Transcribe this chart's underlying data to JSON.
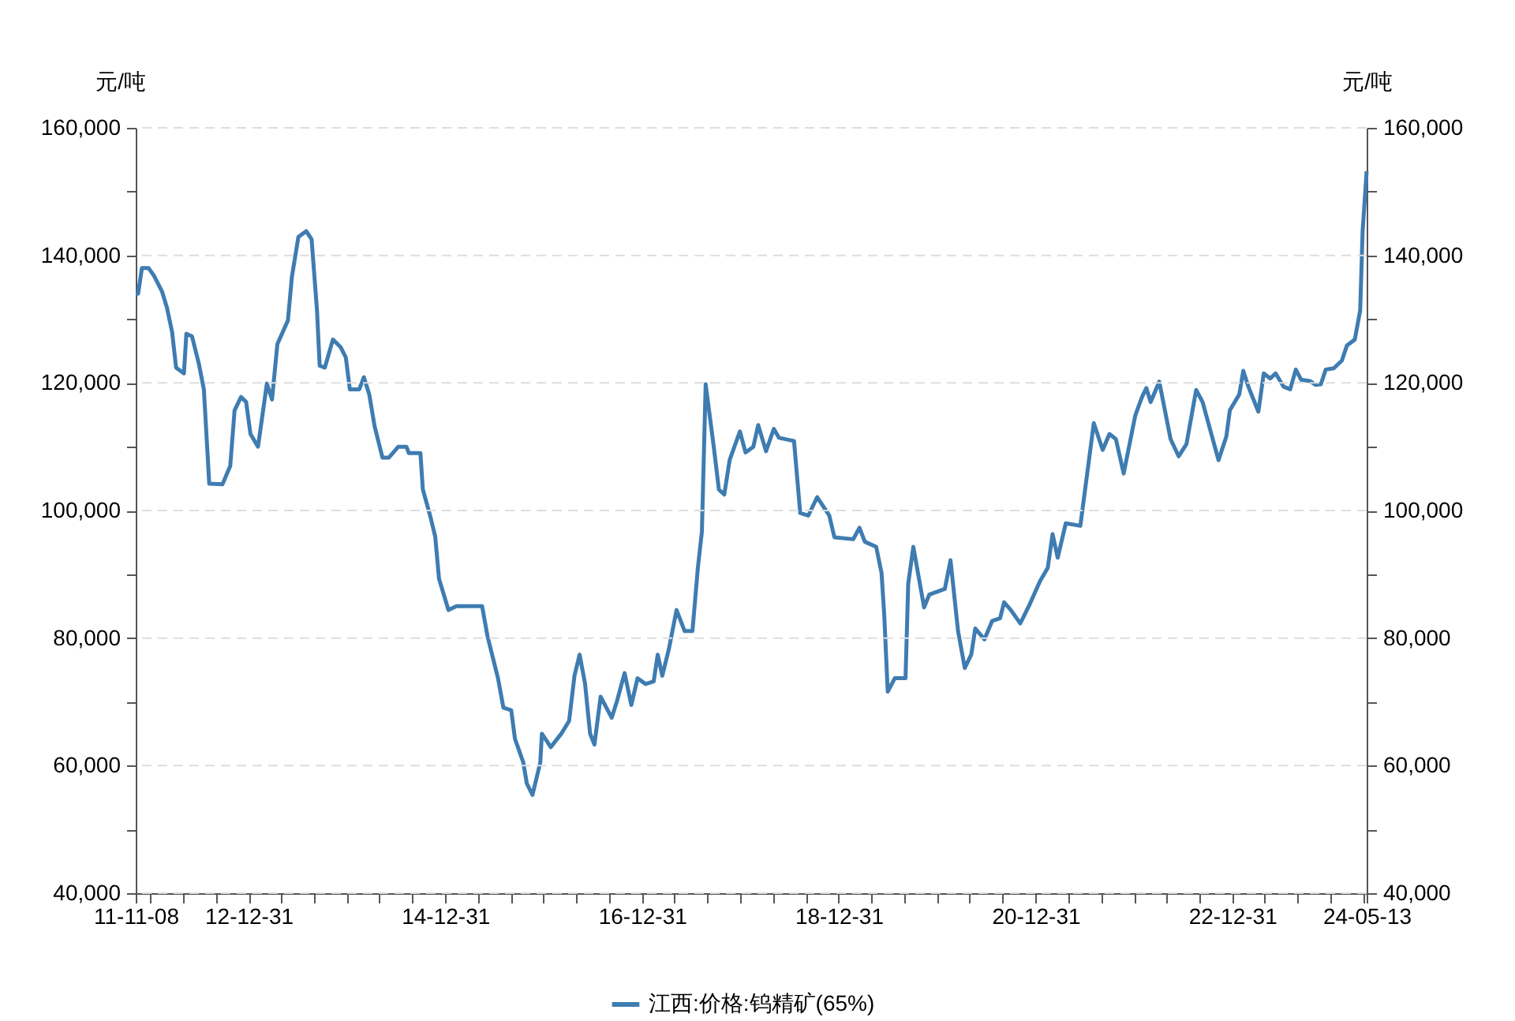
{
  "chart_data": {
    "type": "line",
    "ylabel": "元/吨",
    "y2label": "元/吨",
    "x": [
      "2011-11-08",
      "2011-11-17",
      "2011-12-01",
      "2011-12-26",
      "2012-01-15",
      "2012-02-14",
      "2012-03-03",
      "2012-03-22",
      "2012-04-06",
      "2012-05-05",
      "2012-05-14",
      "2012-06-04",
      "2012-06-29",
      "2012-07-18",
      "2012-08-07",
      "2012-09-25",
      "2012-10-24",
      "2012-11-09",
      "2012-12-03",
      "2012-12-22",
      "2013-01-07",
      "2013-02-04",
      "2013-03-09",
      "2013-03-28",
      "2013-04-17",
      "2013-05-26",
      "2013-06-10",
      "2013-07-04",
      "2013-08-02",
      "2013-08-22",
      "2013-09-11",
      "2013-09-21",
      "2013-10-10",
      "2013-11-09",
      "2013-12-08",
      "2013-12-27",
      "2014-01-11",
      "2014-02-15",
      "2014-03-04",
      "2014-03-24",
      "2014-04-13",
      "2014-05-12",
      "2014-06-05",
      "2014-07-10",
      "2014-08-09",
      "2014-08-18",
      "2014-09-30",
      "2014-10-09",
      "2014-11-05",
      "2014-11-24",
      "2014-12-08",
      "2015-01-12",
      "2015-02-11",
      "2015-05-17",
      "2015-06-06",
      "2015-07-15",
      "2015-08-04",
      "2015-09-02",
      "2015-09-16",
      "2015-10-17",
      "2015-10-30",
      "2015-11-20",
      "2015-12-19",
      "2015-12-25",
      "2016-01-27",
      "2016-03-06",
      "2016-04-04",
      "2016-04-24",
      "2016-05-13",
      "2016-06-02",
      "2016-06-21",
      "2016-07-07",
      "2016-07-30",
      "2016-09-09",
      "2016-09-28",
      "2016-10-27",
      "2016-11-21",
      "2016-12-14",
      "2017-01-13",
      "2017-02-12",
      "2017-02-27",
      "2017-03-16",
      "2017-04-09",
      "2017-05-08",
      "2017-06-07",
      "2017-07-06",
      "2017-07-26",
      "2017-08-10",
      "2017-08-24",
      "2017-09-23",
      "2017-10-12",
      "2017-11-01",
      "2017-11-21",
      "2017-12-29",
      "2018-01-19",
      "2018-02-17",
      "2018-03-07",
      "2018-04-05",
      "2018-05-04",
      "2018-05-23",
      "2018-07-18",
      "2018-08-10",
      "2018-09-09",
      "2018-10-12",
      "2018-11-26",
      "2018-12-15",
      "2019-02-23",
      "2019-03-18",
      "2019-04-07",
      "2019-05-19",
      "2019-06-08",
      "2019-06-18",
      "2019-07-01",
      "2019-07-27",
      "2019-09-05",
      "2019-09-15",
      "2019-10-04",
      "2019-11-13",
      "2019-12-02",
      "2020-01-29",
      "2020-02-19",
      "2020-03-18",
      "2020-04-12",
      "2020-05-06",
      "2020-05-21",
      "2020-06-24",
      "2020-07-23",
      "2020-08-21",
      "2020-09-05",
      "2020-09-30",
      "2020-11-04",
      "2020-12-08",
      "2021-01-16",
      "2021-02-14",
      "2021-03-04",
      "2021-03-23",
      "2021-04-22",
      "2021-06-15",
      "2021-07-08",
      "2021-08-04",
      "2021-09-06",
      "2021-10-01",
      "2021-10-25",
      "2021-11-23",
      "2022-01-05",
      "2022-01-30",
      "2022-02-15",
      "2022-03-03",
      "2022-04-04",
      "2022-05-16",
      "2022-06-15",
      "2022-07-14",
      "2022-08-19",
      "2022-09-12",
      "2022-11-10",
      "2022-12-09",
      "2022-12-22",
      "2023-01-26",
      "2023-02-10",
      "2023-03-01",
      "2023-04-07",
      "2023-04-27",
      "2023-05-21",
      "2023-06-10",
      "2023-07-10",
      "2023-08-03",
      "2023-08-24",
      "2023-09-13",
      "2023-10-16",
      "2023-11-05",
      "2023-11-25",
      "2023-12-13",
      "2024-01-12",
      "2024-02-11",
      "2024-03-01",
      "2024-03-30",
      "2024-04-19",
      "2024-04-28",
      "2024-05-13"
    ],
    "series": [
      {
        "name": "江西:价格:钨精矿(65%)",
        "color": "#3e7cb1",
        "values": [
          134000,
          134000,
          138000,
          138000,
          136800,
          134300,
          131800,
          128000,
          122400,
          121500,
          127700,
          127300,
          123100,
          119000,
          104200,
          104100,
          107000,
          115700,
          117800,
          117000,
          112000,
          110000,
          119900,
          117400,
          126100,
          129800,
          136700,
          142900,
          143800,
          142500,
          131400,
          122700,
          122400,
          126800,
          125600,
          124000,
          119000,
          119000,
          120900,
          118200,
          113200,
          108300,
          108300,
          110000,
          110000,
          109000,
          109000,
          103300,
          99200,
          95900,
          89300,
          84400,
          85000,
          85000,
          80300,
          73700,
          69100,
          68700,
          64200,
          60500,
          57200,
          55400,
          60500,
          65000,
          62900,
          65000,
          67000,
          74100,
          77400,
          72900,
          65000,
          63300,
          70800,
          67500,
          70000,
          74500,
          69500,
          73700,
          72800,
          73200,
          77400,
          74100,
          78200,
          84400,
          81100,
          81100,
          91000,
          96700,
          119800,
          110000,
          103300,
          102500,
          107900,
          112400,
          109100,
          110000,
          113400,
          109300,
          112800,
          111400,
          110900,
          99600,
          99200,
          102100,
          99200,
          95800,
          95500,
          97300,
          95100,
          94300,
          90200,
          83600,
          71600,
          73700,
          73700,
          88500,
          94300,
          84800,
          86800,
          87700,
          92200,
          81100,
          75300,
          77400,
          81500,
          79800,
          82700,
          83100,
          85600,
          84400,
          82300,
          85200,
          88900,
          91000,
          96300,
          92600,
          98000,
          97600,
          105000,
          113700,
          109500,
          112000,
          111200,
          105800,
          114900,
          117800,
          119200,
          117000,
          120200,
          111200,
          108500,
          110400,
          118900,
          117000,
          107900,
          111600,
          115700,
          118200,
          121900,
          119400,
          115500,
          121500,
          120700,
          121500,
          119400,
          119000,
          122100,
          120500,
          120300,
          119700,
          119800,
          122100,
          122300,
          123500,
          125900,
          126800,
          131400,
          143800,
          153200
        ]
      }
    ],
    "xlim": [
      "2011-11-08",
      "2024-05-13"
    ],
    "xticks": [
      {
        "value": "2011-11-08",
        "label": "11-11-08"
      },
      {
        "value": "2011-12-31",
        "label": null
      },
      {
        "value": "2012-04-30",
        "label": null
      },
      {
        "value": "2012-08-31",
        "label": null
      },
      {
        "value": "2012-12-31",
        "label": "12-12-31"
      },
      {
        "value": "2013-04-30",
        "label": null
      },
      {
        "value": "2013-08-31",
        "label": null
      },
      {
        "value": "2013-12-31",
        "label": null
      },
      {
        "value": "2014-04-30",
        "label": null
      },
      {
        "value": "2014-08-31",
        "label": null
      },
      {
        "value": "2014-12-31",
        "label": "14-12-31"
      },
      {
        "value": "2015-04-30",
        "label": null
      },
      {
        "value": "2015-08-31",
        "label": null
      },
      {
        "value": "2015-12-31",
        "label": null
      },
      {
        "value": "2016-04-30",
        "label": null
      },
      {
        "value": "2016-08-31",
        "label": null
      },
      {
        "value": "2016-12-31",
        "label": "16-12-31"
      },
      {
        "value": "2017-04-30",
        "label": null
      },
      {
        "value": "2017-08-31",
        "label": null
      },
      {
        "value": "2017-12-31",
        "label": null
      },
      {
        "value": "2018-04-30",
        "label": null
      },
      {
        "value": "2018-08-31",
        "label": null
      },
      {
        "value": "2018-12-31",
        "label": "18-12-31"
      },
      {
        "value": "2019-04-30",
        "label": null
      },
      {
        "value": "2019-08-31",
        "label": null
      },
      {
        "value": "2019-12-31",
        "label": null
      },
      {
        "value": "2020-04-30",
        "label": null
      },
      {
        "value": "2020-08-31",
        "label": null
      },
      {
        "value": "2020-12-31",
        "label": "20-12-31"
      },
      {
        "value": "2021-04-30",
        "label": null
      },
      {
        "value": "2021-08-31",
        "label": null
      },
      {
        "value": "2021-12-31",
        "label": null
      },
      {
        "value": "2022-04-30",
        "label": null
      },
      {
        "value": "2022-08-31",
        "label": null
      },
      {
        "value": "2022-12-31",
        "label": "22-12-31"
      },
      {
        "value": "2023-04-30",
        "label": null
      },
      {
        "value": "2023-08-31",
        "label": null
      },
      {
        "value": "2023-12-31",
        "label": null
      },
      {
        "value": "2024-04-30",
        "label": null
      },
      {
        "value": "2024-05-13",
        "label": "24-05-13"
      }
    ],
    "ylim": [
      40000,
      160000
    ],
    "yticks": [
      {
        "value": 40000,
        "label": "40,000"
      },
      {
        "value": 50000,
        "label": null
      },
      {
        "value": 60000,
        "label": "60,000"
      },
      {
        "value": 70000,
        "label": null
      },
      {
        "value": 80000,
        "label": "80,000"
      },
      {
        "value": 90000,
        "label": null
      },
      {
        "value": 100000,
        "label": "100,000"
      },
      {
        "value": 110000,
        "label": null
      },
      {
        "value": 120000,
        "label": "120,000"
      },
      {
        "value": 130000,
        "label": null
      },
      {
        "value": 140000,
        "label": "140,000"
      },
      {
        "value": 150000,
        "label": null
      },
      {
        "value": 160000,
        "label": "160,000"
      }
    ],
    "y2lim": [
      40000,
      160000
    ],
    "y2ticks": [
      {
        "value": 40000,
        "label": "40,000"
      },
      {
        "value": 50000,
        "label": null
      },
      {
        "value": 60000,
        "label": "60,000"
      },
      {
        "value": 70000,
        "label": null
      },
      {
        "value": 80000,
        "label": "80,000"
      },
      {
        "value": 90000,
        "label": null
      },
      {
        "value": 100000,
        "label": "100,000"
      },
      {
        "value": 110000,
        "label": null
      },
      {
        "value": 120000,
        "label": "120,000"
      },
      {
        "value": 130000,
        "label": null
      },
      {
        "value": 140000,
        "label": "140,000"
      },
      {
        "value": 150000,
        "label": null
      },
      {
        "value": 160000,
        "label": "160,000"
      }
    ],
    "grid": "y",
    "legend": "bottom",
    "marker": "none",
    "line_style": "solid"
  }
}
